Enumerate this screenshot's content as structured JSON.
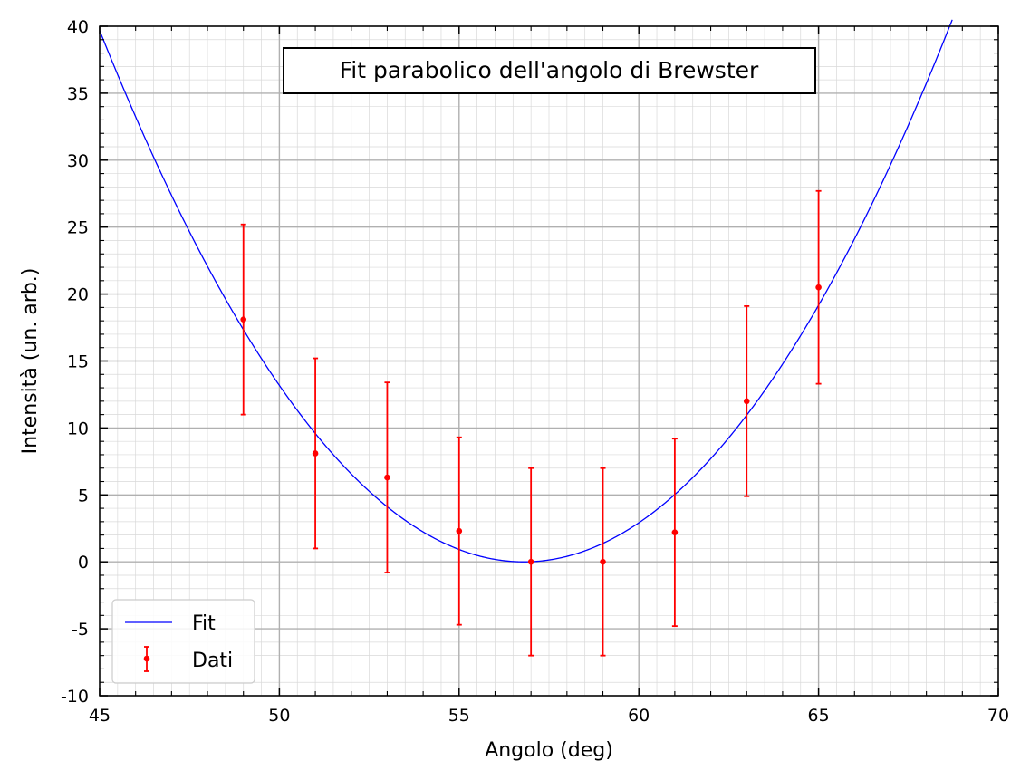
{
  "chart_data": {
    "type": "scatter",
    "title": "Fit parabolico dell'angolo di Brewster",
    "xlabel": "Angolo (deg)",
    "ylabel": "Intensità (un. arb.)",
    "xlim": [
      45,
      70
    ],
    "ylim": [
      -10,
      40
    ],
    "x_ticks": [
      "45",
      "50",
      "55",
      "60",
      "65",
      "70"
    ],
    "y_ticks": [
      "-10",
      "-5",
      "0",
      "5",
      "10",
      "15",
      "20",
      "25",
      "30",
      "35",
      "40"
    ],
    "grid": "major and minor",
    "legend_position": "lower-left",
    "series": [
      {
        "name": "Fit",
        "kind": "line",
        "color": "#0000ff",
        "function": "parabola",
        "vertex_x": 56.8,
        "vertex_y": 0.0,
        "coefficient": 0.285
      },
      {
        "name": "Dati",
        "kind": "errorbar",
        "color": "#ff0000",
        "x": [
          49,
          51,
          53,
          55,
          57,
          59,
          61,
          63,
          65
        ],
        "y": [
          18.1,
          8.1,
          6.3,
          2.3,
          0.0,
          0.0,
          2.2,
          12.0,
          20.5
        ],
        "yerr_low": [
          7.1,
          7.1,
          7.1,
          7.0,
          7.0,
          7.0,
          7.0,
          7.1,
          7.2
        ],
        "yerr_high": [
          7.1,
          7.1,
          7.1,
          7.0,
          7.0,
          7.0,
          7.0,
          7.1,
          7.2
        ]
      }
    ]
  }
}
